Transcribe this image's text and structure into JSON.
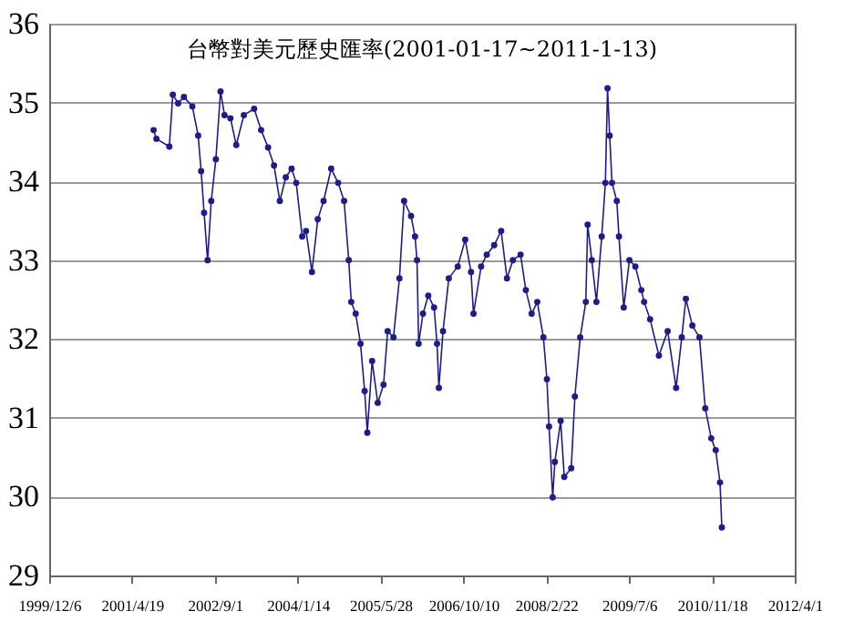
{
  "chart_data": {
    "type": "line",
    "title": "台幣對美元歷史匯率(2001-01-17~2011-1-13)",
    "x": [
      "2001-08-27",
      "2001-09-13",
      "2001-11-30",
      "2001-12-21",
      "2002-01-22",
      "2002-02-26",
      "2002-04-18",
      "2002-05-23",
      "2002-06-10",
      "2002-06-28",
      "2002-07-19",
      "2002-08-10",
      "2002-09-07",
      "2002-10-05",
      "2002-10-29",
      "2002-12-04",
      "2003-01-08",
      "2003-02-23",
      "2003-04-26",
      "2003-06-07",
      "2003-07-19",
      "2003-08-24",
      "2003-09-28",
      "2003-11-03",
      "2003-12-08",
      "2004-01-05",
      "2004-02-10",
      "2004-03-04",
      "2004-04-09",
      "2004-05-14",
      "2004-06-18",
      "2004-08-03",
      "2004-09-14",
      "2004-10-20",
      "2004-11-17",
      "2004-12-02",
      "2004-12-29",
      "2005-01-27",
      "2005-02-21",
      "2005-03-09",
      "2005-04-07",
      "2005-05-11",
      "2005-06-15",
      "2005-07-10",
      "2005-08-14",
      "2005-09-19",
      "2005-10-17",
      "2005-11-28",
      "2005-12-22",
      "2006-01-03",
      "2006-01-13",
      "2006-02-08",
      "2006-03-12",
      "2006-04-16",
      "2006-05-04",
      "2006-05-15",
      "2006-06-09",
      "2006-07-14",
      "2006-09-06",
      "2006-10-21",
      "2006-11-25",
      "2006-12-10",
      "2007-01-25",
      "2007-02-28",
      "2007-04-14",
      "2007-05-26",
      "2007-06-30",
      "2007-08-05",
      "2007-09-20",
      "2007-10-22",
      "2007-11-26",
      "2007-12-30",
      "2008-02-05",
      "2008-02-26",
      "2008-03-10",
      "2008-04-01",
      "2008-04-14",
      "2008-05-19",
      "2008-06-10",
      "2008-07-22",
      "2008-08-13",
      "2008-09-14",
      "2008-10-18",
      "2008-10-29",
      "2008-11-23",
      "2008-12-21",
      "2009-01-22",
      "2009-02-13",
      "2009-02-26",
      "2009-03-11",
      "2009-03-25",
      "2009-04-23",
      "2009-05-06",
      "2009-06-04",
      "2009-07-08",
      "2009-08-13",
      "2009-09-18",
      "2009-10-05",
      "2009-11-10",
      "2010-01-02",
      "2010-02-24",
      "2010-04-16",
      "2010-05-20",
      "2010-06-14",
      "2010-07-23",
      "2010-09-04",
      "2010-10-09",
      "2010-11-14",
      "2010-12-11",
      "2011-01-06",
      "2011-01-17"
    ],
    "series": [
      {
        "color": "#1c1c8c",
        "values": [
          34.65,
          34.54,
          34.44,
          35.1,
          34.99,
          35.07,
          34.95,
          34.58,
          34.13,
          33.6,
          33.0,
          33.75,
          34.28,
          35.14,
          34.84,
          34.8,
          34.46,
          34.84,
          34.92,
          34.65,
          34.43,
          34.2,
          33.75,
          34.05,
          34.16,
          33.98,
          33.3,
          33.37,
          32.85,
          33.52,
          33.75,
          34.16,
          33.98,
          33.75,
          33.0,
          32.47,
          32.32,
          31.94,
          31.34,
          30.81,
          31.72,
          31.19,
          31.42,
          32.1,
          32.02,
          32.77,
          33.75,
          33.56,
          33.3,
          33.0,
          31.94,
          32.32,
          32.55,
          32.4,
          31.94,
          31.38,
          32.1,
          32.77,
          32.92,
          33.26,
          32.85,
          32.32,
          32.92,
          33.07,
          33.19,
          33.37,
          32.77,
          33.0,
          33.07,
          32.62,
          32.32,
          32.47,
          32.02,
          31.49,
          30.89,
          29.99,
          30.44,
          30.96,
          30.25,
          30.36,
          31.27,
          32.02,
          32.47,
          33.45,
          33.0,
          32.47,
          33.3,
          33.98,
          35.18,
          34.58,
          33.98,
          33.75,
          33.3,
          32.4,
          33.0,
          32.92,
          32.62,
          32.47,
          32.25,
          31.79,
          32.1,
          31.38,
          32.02,
          32.51,
          32.17,
          32.02,
          31.12,
          30.74,
          30.59,
          30.18,
          29.61
        ]
      }
    ],
    "xlim": [
      "1999-12-06",
      "2012-04-01"
    ],
    "xticks": [
      {
        "value": "1999-12-06",
        "label": "1999/12/6"
      },
      {
        "value": "2001-04-19",
        "label": "2001/4/19"
      },
      {
        "value": "2002-09-01",
        "label": "2002/9/1"
      },
      {
        "value": "2004-01-14",
        "label": "2004/1/14"
      },
      {
        "value": "2005-05-28",
        "label": "2005/5/28"
      },
      {
        "value": "2006-10-10",
        "label": "2006/10/10"
      },
      {
        "value": "2008-02-22",
        "label": "2008/2/22"
      },
      {
        "value": "2009-07-06",
        "label": "2009/7/6"
      },
      {
        "value": "2010-11-18",
        "label": "2010/11/18"
      },
      {
        "value": "2012-04-01",
        "label": "2012/4/1"
      }
    ],
    "ylim": [
      29,
      36
    ],
    "yticks": [
      29,
      30,
      31,
      32,
      33,
      34,
      35,
      36
    ],
    "grid": "y",
    "legend": false,
    "marker": "circle",
    "line_style": "solid"
  }
}
